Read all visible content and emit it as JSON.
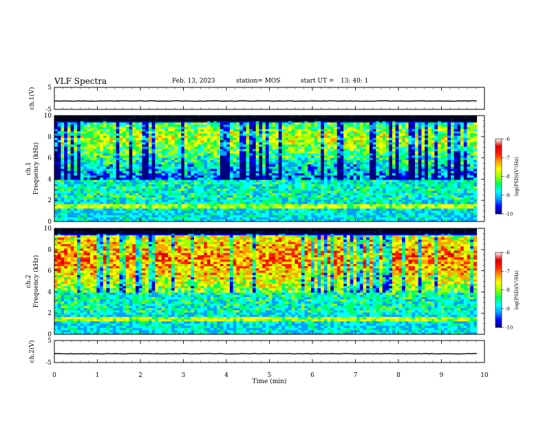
{
  "header": {
    "title": "VLF Spectra",
    "date": "Feb. 13, 2023",
    "station": "station= MOS",
    "start_label": "start  UT =",
    "start_time": "13: 40: 1"
  },
  "chart_data": [
    {
      "type": "line",
      "panel": "ch1-waveform",
      "ylabel": "ch.1(V)",
      "ylim": [
        -5,
        5
      ],
      "yticks": [
        "5",
        "-5"
      ],
      "x": [
        0,
        9.82
      ],
      "y": [
        -1.2,
        -1.2
      ],
      "grid": false
    },
    {
      "type": "heatmap",
      "panel": "ch1-spectrogram",
      "ylabel": "ch.1\nFrequency (kHz)",
      "ylim": [
        0,
        10
      ],
      "yticks": [
        "0",
        "2",
        "4",
        "6",
        "8",
        "10"
      ],
      "x_extent": [
        0,
        9.82
      ],
      "colorbar": {
        "label": "log(PSD)(V²/Hz)",
        "range": [
          -10,
          -6
        ],
        "ticks": [
          "-6",
          "-7",
          "-8",
          "-9",
          "-10"
        ],
        "colors": [
          "#000080",
          "#0000ff",
          "#00a0ff",
          "#00ffff",
          "#00ff60",
          "#a0ff00",
          "#ffff00",
          "#ffa000",
          "#ff2000",
          "#e00000",
          "#ffffff"
        ]
      }
    },
    {
      "type": "heatmap",
      "panel": "ch2-spectrogram",
      "ylabel": "ch.2\nFrequency (kHz)",
      "ylim": [
        0,
        10
      ],
      "yticks": [
        "0",
        "2",
        "4",
        "6",
        "8",
        "10"
      ],
      "x_extent": [
        0,
        9.82
      ],
      "colorbar": {
        "label": "log(PSD)(V²/Hz)",
        "range": [
          -10,
          -6
        ],
        "ticks": [
          "-6",
          "-7",
          "-8",
          "-9",
          "-10"
        ],
        "colors": [
          "#000080",
          "#0000ff",
          "#00a0ff",
          "#00ffff",
          "#00ff60",
          "#a0ff00",
          "#ffff00",
          "#ffa000",
          "#ff2000",
          "#e00000",
          "#ffffff"
        ]
      }
    },
    {
      "type": "line",
      "panel": "ch2-waveform",
      "ylabel": "ch.2(V)",
      "ylim": [
        -5,
        5
      ],
      "yticks": [
        "5",
        "-5"
      ],
      "x": [
        0,
        9.82
      ],
      "y": [
        -1.0,
        -1.0
      ],
      "grid": false
    }
  ],
  "xaxis": {
    "label": "Time  (min)",
    "range": [
      0,
      10
    ],
    "ticks": [
      "0",
      "1",
      "2",
      "3",
      "4",
      "5",
      "6",
      "7",
      "8",
      "9",
      "10"
    ]
  }
}
